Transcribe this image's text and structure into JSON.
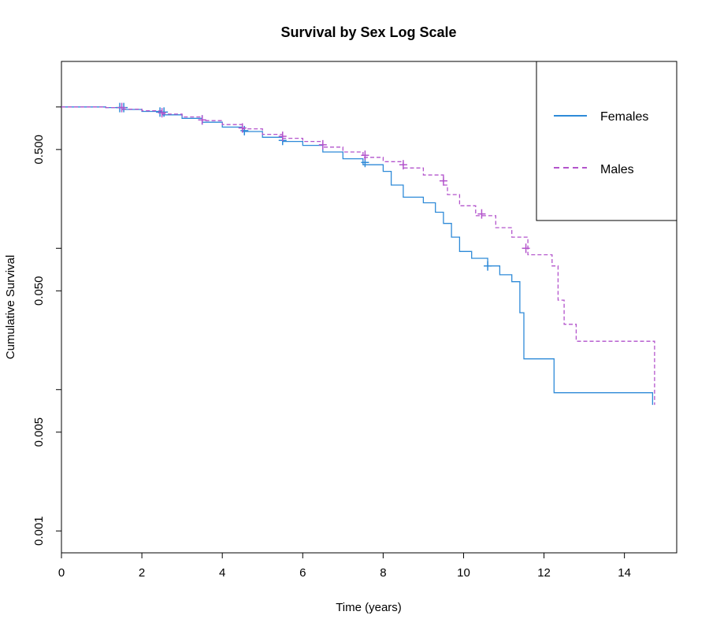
{
  "chart_data": {
    "type": "line",
    "subtype": "kaplan-meier step",
    "title": "Survival by Sex Log Scale",
    "xlabel": "Time (years)",
    "ylabel": "Cumulative Survival",
    "xlim": [
      0,
      15.3
    ],
    "ylim_log": [
      0.0007,
      2.1
    ],
    "y_scale": "log",
    "x_ticks": [
      0,
      2,
      4,
      6,
      8,
      10,
      12,
      14
    ],
    "x_tick_labels": [
      "0",
      "2",
      "4",
      "6",
      "8",
      "10",
      "12",
      "14"
    ],
    "y_ticks": [
      0.001,
      0.005,
      0.05,
      0.5
    ],
    "y_tick_labels": [
      "0.001",
      "0.005",
      "0.050",
      "0.500"
    ],
    "y_minor_ticks": [
      0.01,
      0.1,
      1.0
    ],
    "legend": {
      "placement": "top-right"
    },
    "series": [
      {
        "name": "Females",
        "color": "#2e8ad8",
        "style": "solid",
        "steps": [
          [
            0,
            1.0
          ],
          [
            1.1,
            0.99
          ],
          [
            1.5,
            0.96
          ],
          [
            2.0,
            0.93
          ],
          [
            2.5,
            0.88
          ],
          [
            3.0,
            0.83
          ],
          [
            3.5,
            0.78
          ],
          [
            4.0,
            0.72
          ],
          [
            4.5,
            0.67
          ],
          [
            5.0,
            0.61
          ],
          [
            5.5,
            0.57
          ],
          [
            6.0,
            0.535
          ],
          [
            6.5,
            0.48
          ],
          [
            7.0,
            0.43
          ],
          [
            7.5,
            0.39
          ],
          [
            8.0,
            0.35
          ],
          [
            8.2,
            0.28
          ],
          [
            8.5,
            0.23
          ],
          [
            9.0,
            0.21
          ],
          [
            9.3,
            0.18
          ],
          [
            9.5,
            0.15
          ],
          [
            9.7,
            0.12
          ],
          [
            9.9,
            0.095
          ],
          [
            10.2,
            0.085
          ],
          [
            10.6,
            0.075
          ],
          [
            10.9,
            0.065
          ],
          [
            11.2,
            0.058
          ],
          [
            11.4,
            0.035
          ],
          [
            11.5,
            0.0165
          ],
          [
            12.25,
            0.0095
          ],
          [
            14.7,
            0.0078
          ]
        ],
        "end_x": 14.7,
        "censor_marks": [
          [
            1.45,
            0.99
          ],
          [
            1.55,
            0.99
          ],
          [
            2.45,
            0.92
          ],
          [
            2.55,
            0.92
          ],
          [
            3.5,
            0.81
          ],
          [
            4.55,
            0.68
          ],
          [
            5.5,
            0.58
          ],
          [
            7.55,
            0.405
          ],
          [
            10.6,
            0.075
          ]
        ]
      },
      {
        "name": "Males",
        "color": "#b354cc",
        "style": "dashed",
        "steps": [
          [
            0,
            1.0
          ],
          [
            1.1,
            0.99
          ],
          [
            1.5,
            0.965
          ],
          [
            2.0,
            0.94
          ],
          [
            2.5,
            0.89
          ],
          [
            3.0,
            0.85
          ],
          [
            3.5,
            0.8
          ],
          [
            4.0,
            0.75
          ],
          [
            4.5,
            0.7
          ],
          [
            5.0,
            0.64
          ],
          [
            5.5,
            0.6
          ],
          [
            6.0,
            0.57
          ],
          [
            6.5,
            0.52
          ],
          [
            7.0,
            0.48
          ],
          [
            7.5,
            0.44
          ],
          [
            8.0,
            0.41
          ],
          [
            8.5,
            0.37
          ],
          [
            9.0,
            0.33
          ],
          [
            9.5,
            0.28
          ],
          [
            9.6,
            0.24
          ],
          [
            9.9,
            0.2
          ],
          [
            10.3,
            0.17
          ],
          [
            10.8,
            0.14
          ],
          [
            11.2,
            0.12
          ],
          [
            11.6,
            0.09
          ],
          [
            12.2,
            0.075
          ],
          [
            12.35,
            0.043
          ],
          [
            12.5,
            0.029
          ],
          [
            12.8,
            0.022
          ],
          [
            14.75,
            0.0078
          ]
        ],
        "end_x": 14.75,
        "censor_marks": [
          [
            1.5,
            0.99
          ],
          [
            2.5,
            0.91
          ],
          [
            3.5,
            0.81
          ],
          [
            4.5,
            0.71
          ],
          [
            5.5,
            0.62
          ],
          [
            6.5,
            0.54
          ],
          [
            7.55,
            0.455
          ],
          [
            8.5,
            0.39
          ],
          [
            9.5,
            0.3
          ],
          [
            10.45,
            0.175
          ],
          [
            11.55,
            0.1
          ]
        ]
      }
    ]
  }
}
